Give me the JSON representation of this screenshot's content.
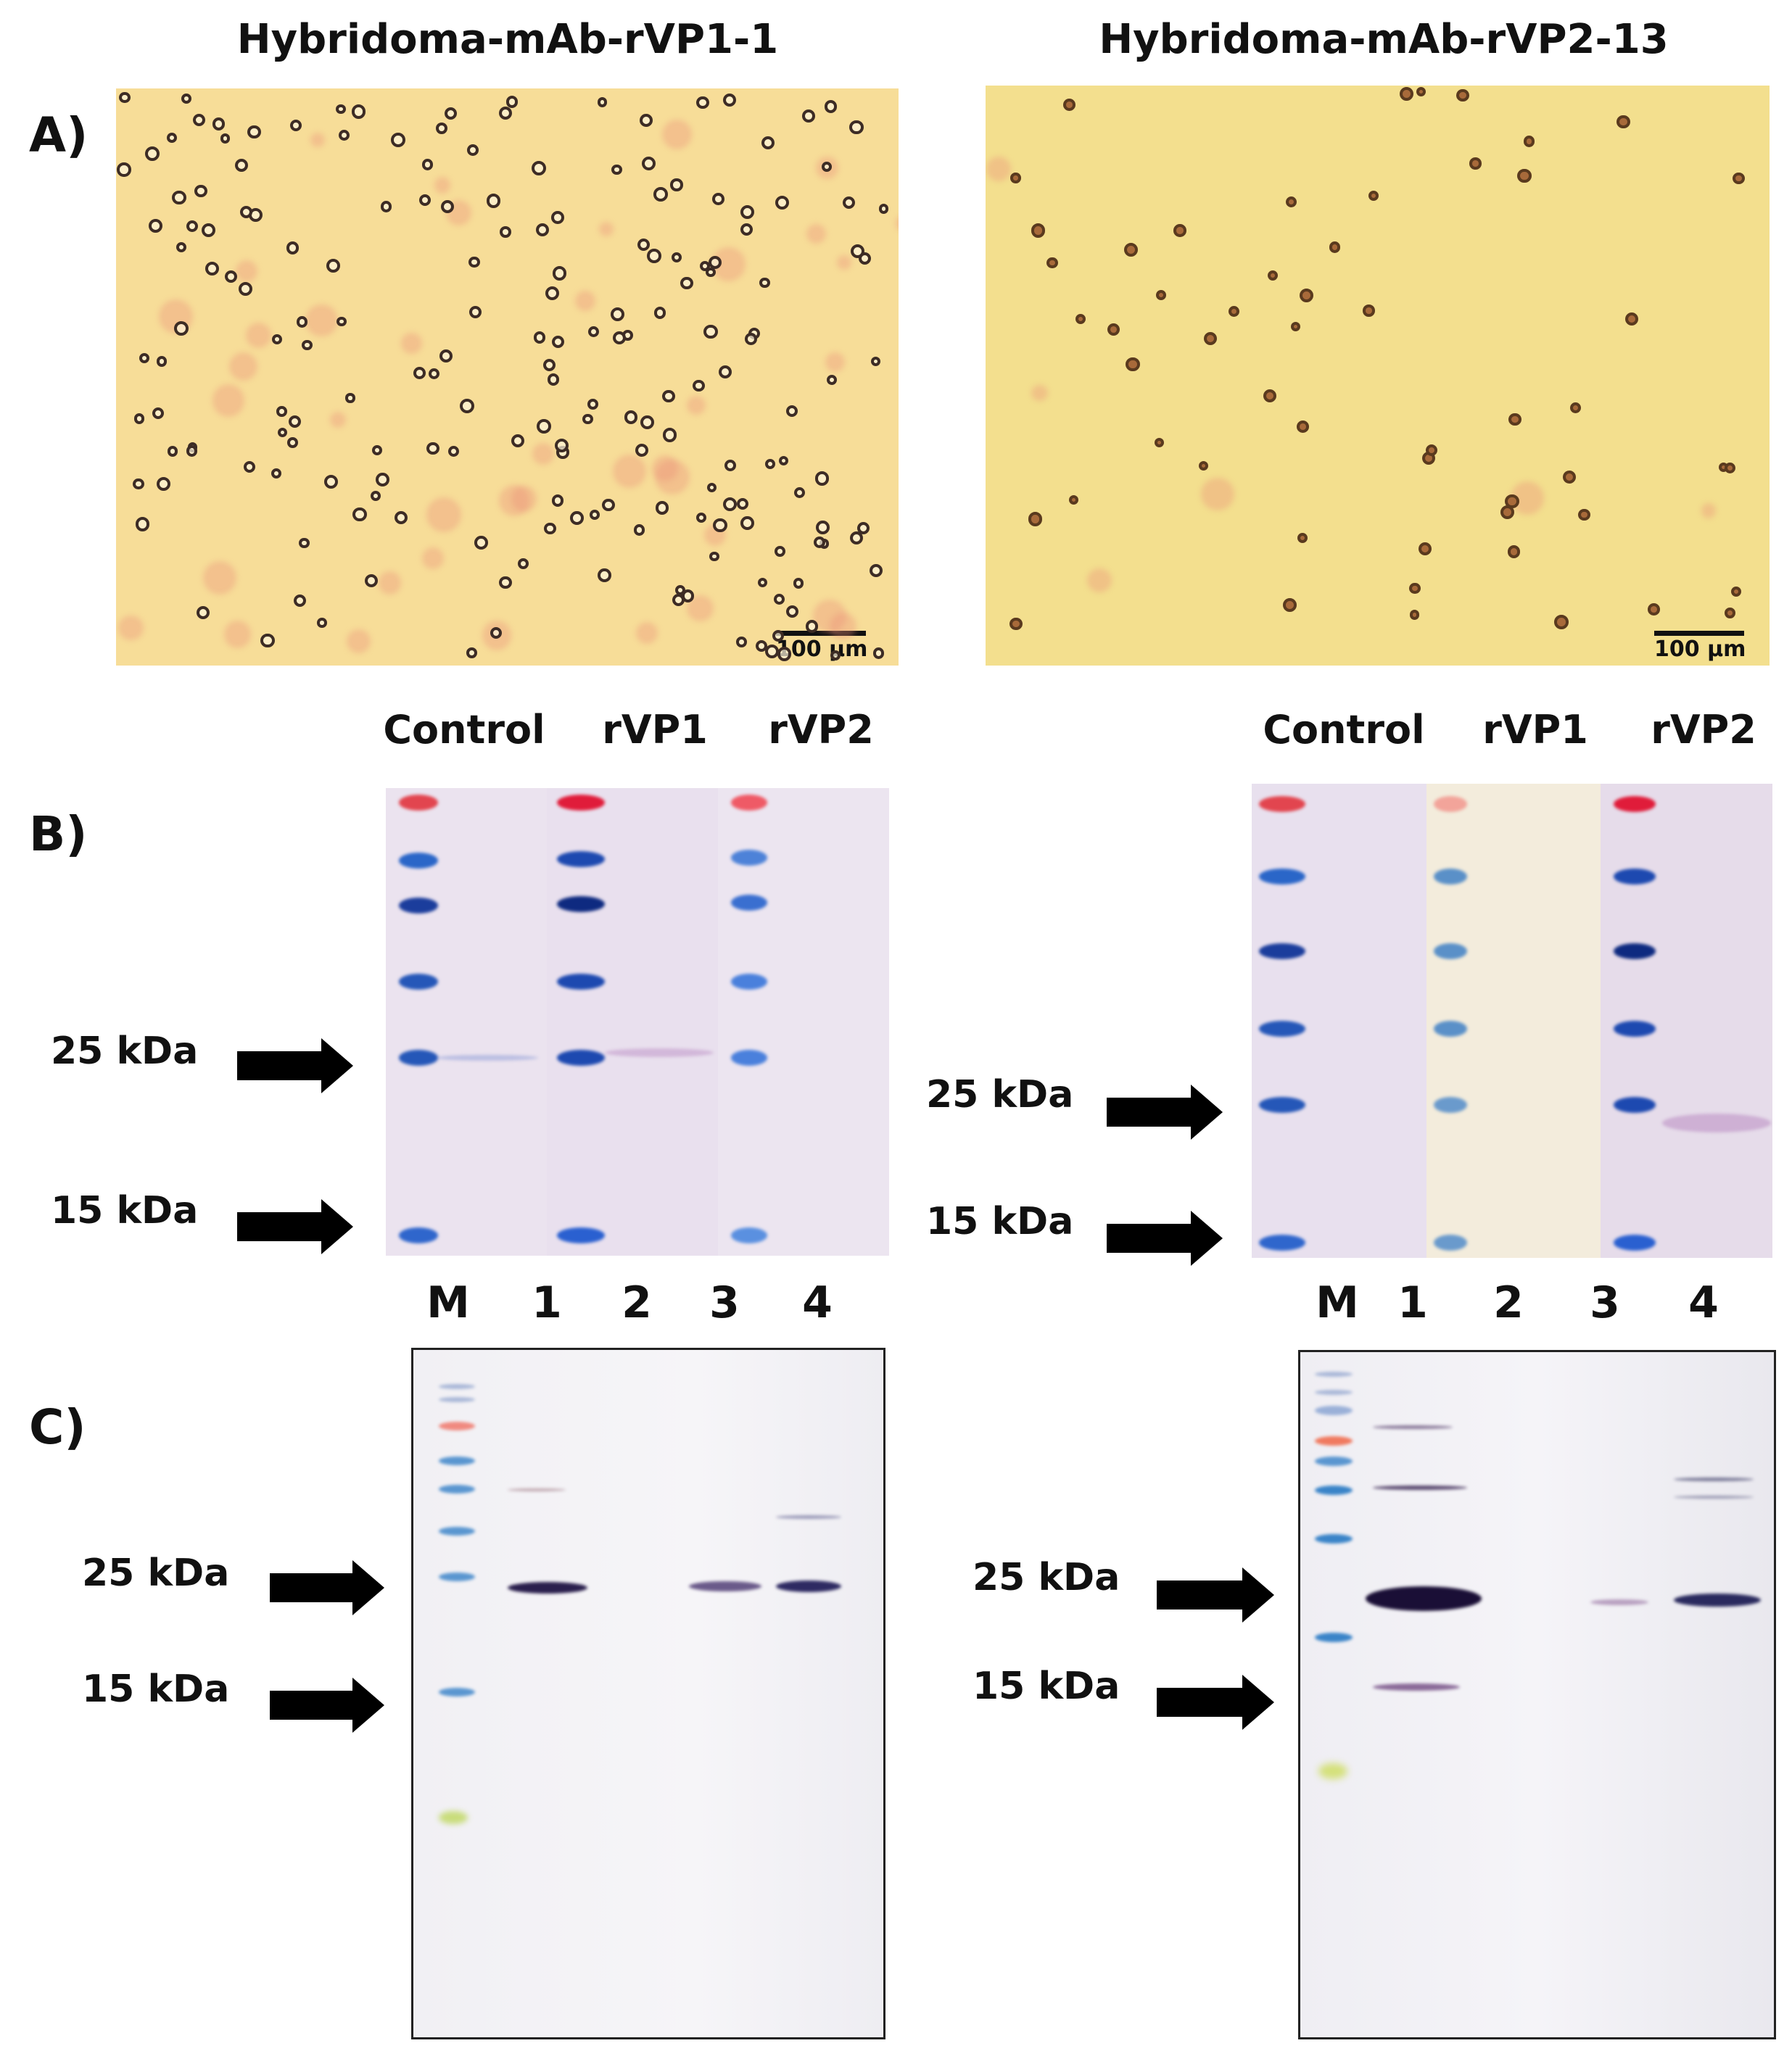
{
  "titles": {
    "left": "Hybridoma-mAb-rVP1-1",
    "right": "Hybridoma-mAb-rVP2-13"
  },
  "panel_labels": {
    "a": "A)",
    "b": "B)",
    "c": "C)"
  },
  "scale_bar": "100 µm",
  "panel_b_columns": [
    "Control",
    "rVP1",
    "rVP2"
  ],
  "panel_c_lanes": [
    "M",
    "1",
    "2",
    "3",
    "4"
  ],
  "markers": {
    "kda25": "25 kDa",
    "kda15": "15 kDa"
  },
  "colors": {
    "micro_left": "#f6dc96",
    "micro_right": "#f3df8e",
    "membrane": "#ece4ef",
    "marker_blue": "#2a5bc8",
    "marker_red": "#e2454f",
    "band_purple": "#2a1f4d"
  }
}
